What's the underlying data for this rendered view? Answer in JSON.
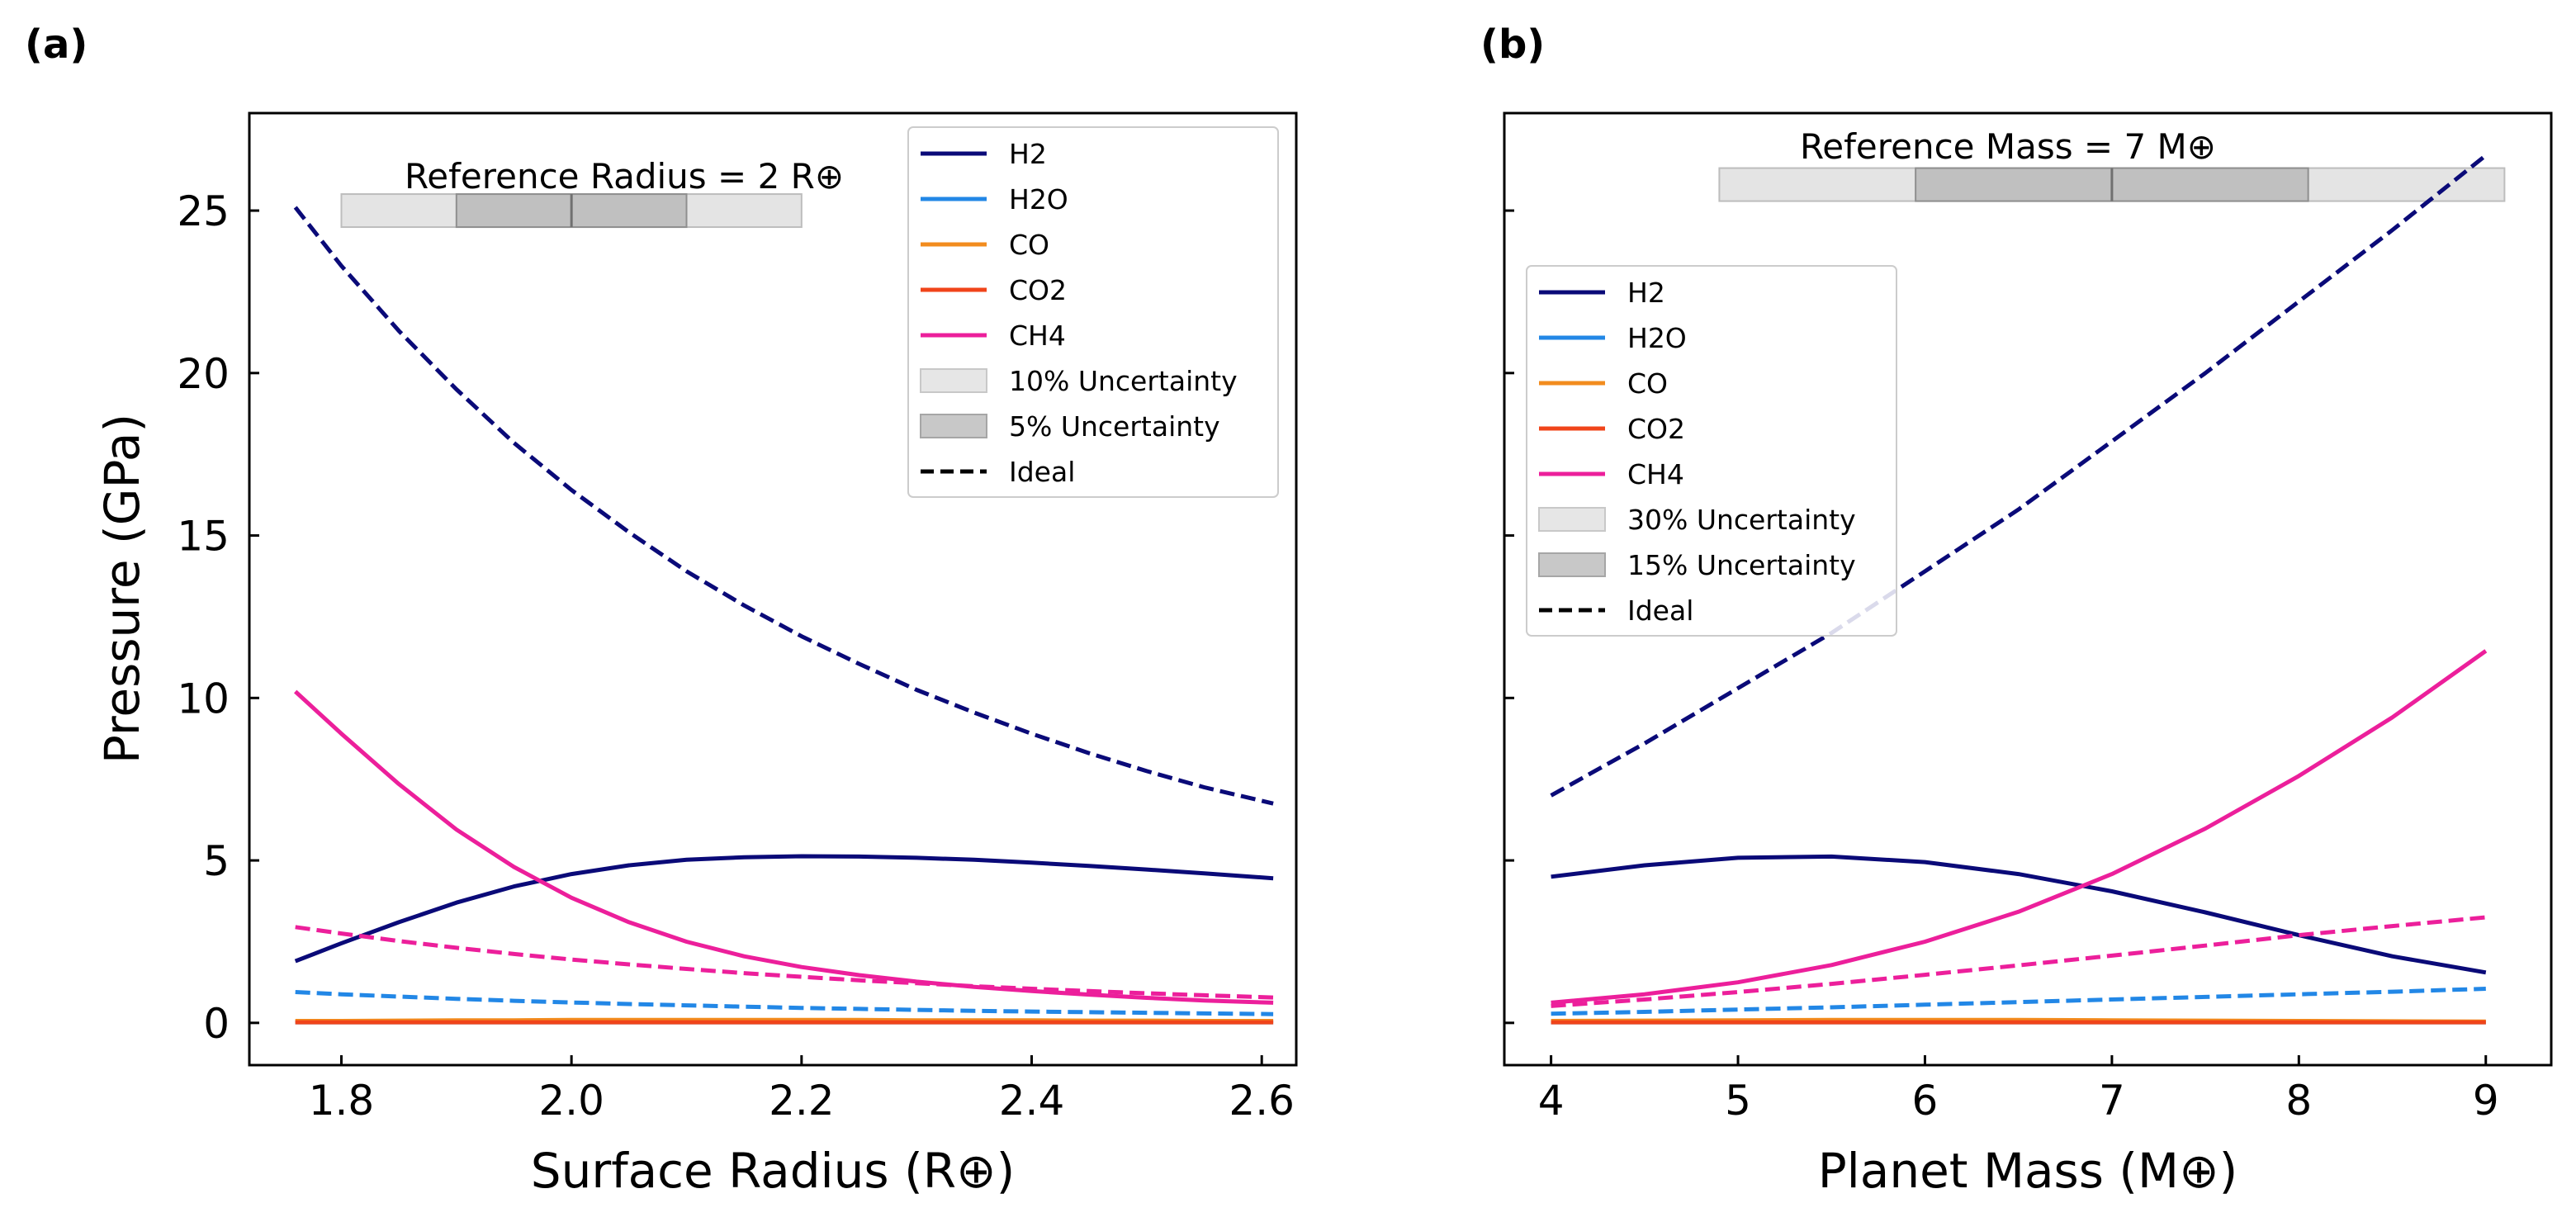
{
  "figure": {
    "ylabel": "Pressure (GPa)",
    "colors": {
      "H2": "#0a0a78",
      "H2O": "#2287e6",
      "CO": "#f28c1e",
      "CO2": "#f0441a",
      "CH4": "#ec1f9b"
    }
  },
  "chart_data": [
    {
      "panel_label": "(a)",
      "type": "line",
      "xlabel": "Surface Radius (R⊕)",
      "ylabel": "Pressure (GPa)",
      "xlim": [
        1.72,
        2.63
      ],
      "ylim": [
        -1.3,
        28
      ],
      "xticks": [
        1.8,
        2.0,
        2.2,
        2.4,
        2.6
      ],
      "xtick_labels": [
        "1.8",
        "2.0",
        "2.2",
        "2.4",
        "2.6"
      ],
      "yticks": [
        0,
        5,
        10,
        15,
        20,
        25
      ],
      "ytick_labels": [
        "0",
        "5",
        "10",
        "15",
        "20",
        "25"
      ],
      "x": [
        1.76,
        1.8,
        1.85,
        1.9,
        1.95,
        2.0,
        2.05,
        2.1,
        2.15,
        2.2,
        2.25,
        2.3,
        2.35,
        2.4,
        2.45,
        2.5,
        2.55,
        2.61
      ],
      "series": [
        {
          "name": "H2",
          "style": "solid",
          "values": [
            1.9,
            2.45,
            3.1,
            3.7,
            4.2,
            4.58,
            4.85,
            5.02,
            5.1,
            5.13,
            5.12,
            5.08,
            5.02,
            4.93,
            4.83,
            4.72,
            4.6,
            4.45
          ]
        },
        {
          "name": "H2O",
          "style": "solid",
          "values": [
            0.02,
            0.02,
            0.02,
            0.02,
            0.02,
            0.02,
            0.02,
            0.02,
            0.02,
            0.02,
            0.02,
            0.02,
            0.02,
            0.02,
            0.02,
            0.02,
            0.02,
            0.02
          ]
        },
        {
          "name": "CO",
          "style": "solid",
          "values": [
            0.06,
            0.06,
            0.07,
            0.08,
            0.08,
            0.09,
            0.09,
            0.09,
            0.09,
            0.09,
            0.09,
            0.08,
            0.08,
            0.08,
            0.07,
            0.07,
            0.06,
            0.06
          ]
        },
        {
          "name": "CO2",
          "style": "solid",
          "values": [
            0.02,
            0.02,
            0.02,
            0.02,
            0.02,
            0.02,
            0.02,
            0.02,
            0.02,
            0.02,
            0.02,
            0.02,
            0.02,
            0.02,
            0.02,
            0.02,
            0.02,
            0.02
          ]
        },
        {
          "name": "CH4",
          "style": "solid",
          "values": [
            10.2,
            8.9,
            7.35,
            5.95,
            4.8,
            3.85,
            3.1,
            2.5,
            2.05,
            1.72,
            1.47,
            1.27,
            1.11,
            0.98,
            0.87,
            0.77,
            0.69,
            0.62
          ]
        },
        {
          "name": "H2",
          "style": "dashed",
          "values": [
            25.1,
            23.3,
            21.3,
            19.5,
            17.85,
            16.4,
            15.1,
            13.9,
            12.85,
            11.9,
            11.05,
            10.25,
            9.55,
            8.9,
            8.3,
            7.75,
            7.25,
            6.75
          ]
        },
        {
          "name": "H2O",
          "style": "dashed",
          "values": [
            0.95,
            0.88,
            0.81,
            0.74,
            0.68,
            0.63,
            0.58,
            0.54,
            0.5,
            0.46,
            0.43,
            0.4,
            0.37,
            0.35,
            0.33,
            0.31,
            0.29,
            0.27
          ]
        },
        {
          "name": "CH4",
          "style": "dashed",
          "values": [
            2.95,
            2.75,
            2.52,
            2.31,
            2.12,
            1.95,
            1.8,
            1.66,
            1.53,
            1.42,
            1.31,
            1.22,
            1.13,
            1.05,
            0.98,
            0.91,
            0.85,
            0.78
          ]
        }
      ],
      "reference": {
        "label": "Reference Radius = 2 R⊕",
        "value": 2.0,
        "y": 25,
        "band_10": [
          1.8,
          2.2
        ],
        "band_5": [
          1.9,
          2.1
        ]
      },
      "legend": {
        "placement": "top-right",
        "entries": [
          {
            "label": "H2",
            "kind": "line",
            "key": "H2"
          },
          {
            "label": "H2O",
            "kind": "line",
            "key": "H2O"
          },
          {
            "label": "CO",
            "kind": "line",
            "key": "CO"
          },
          {
            "label": "CO2",
            "kind": "line",
            "key": "CO2"
          },
          {
            "label": "CH4",
            "kind": "line",
            "key": "CH4"
          },
          {
            "label": "10% Uncertainty",
            "kind": "patch-light"
          },
          {
            "label": "5% Uncertainty",
            "kind": "patch-dark"
          },
          {
            "label": "Ideal",
            "kind": "dashed"
          }
        ]
      }
    },
    {
      "panel_label": "(b)",
      "type": "line",
      "xlabel": "Planet Mass (M⊕)",
      "ylabel": "",
      "xlim": [
        3.75,
        9.35
      ],
      "ylim": [
        -1.3,
        28
      ],
      "xticks": [
        4,
        5,
        6,
        7,
        8,
        9
      ],
      "xtick_labels": [
        "4",
        "5",
        "6",
        "7",
        "8",
        "9"
      ],
      "yticks": [
        0,
        5,
        10,
        15,
        20,
        25
      ],
      "ytick_labels": [],
      "x": [
        4.0,
        4.5,
        5.0,
        5.5,
        6.0,
        6.5,
        7.0,
        7.5,
        8.0,
        8.5,
        9.0
      ],
      "series": [
        {
          "name": "H2",
          "style": "solid",
          "values": [
            4.5,
            4.85,
            5.08,
            5.12,
            4.95,
            4.58,
            4.05,
            3.4,
            2.7,
            2.05,
            1.55
          ]
        },
        {
          "name": "H2O",
          "style": "solid",
          "values": [
            0.02,
            0.02,
            0.02,
            0.02,
            0.02,
            0.02,
            0.02,
            0.02,
            0.02,
            0.02,
            0.02
          ]
        },
        {
          "name": "CO",
          "style": "solid",
          "values": [
            0.06,
            0.07,
            0.08,
            0.09,
            0.09,
            0.09,
            0.08,
            0.07,
            0.06,
            0.05,
            0.04
          ]
        },
        {
          "name": "CO2",
          "style": "solid",
          "values": [
            0.02,
            0.02,
            0.02,
            0.02,
            0.02,
            0.02,
            0.02,
            0.02,
            0.02,
            0.02,
            0.02
          ]
        },
        {
          "name": "CH4",
          "style": "solid",
          "values": [
            0.62,
            0.88,
            1.25,
            1.78,
            2.5,
            3.42,
            4.58,
            5.98,
            7.6,
            9.4,
            11.45
          ]
        },
        {
          "name": "H2",
          "style": "dashed",
          "values": [
            7.0,
            8.6,
            10.3,
            12.0,
            13.9,
            15.8,
            17.9,
            20.0,
            22.2,
            24.4,
            26.7
          ]
        },
        {
          "name": "H2O",
          "style": "dashed",
          "values": [
            0.28,
            0.34,
            0.41,
            0.48,
            0.56,
            0.64,
            0.72,
            0.8,
            0.88,
            0.96,
            1.05
          ]
        },
        {
          "name": "CH4",
          "style": "dashed",
          "values": [
            0.52,
            0.72,
            0.95,
            1.2,
            1.48,
            1.77,
            2.07,
            2.38,
            2.7,
            2.98,
            3.25
          ]
        }
      ],
      "reference": {
        "label": "Reference Mass = 7 M⊕",
        "value": 7.0,
        "y": 25.8,
        "band_30": [
          4.9,
          9.1
        ],
        "band_15": [
          5.95,
          8.05
        ]
      },
      "legend": {
        "placement": "upper-left",
        "entries": [
          {
            "label": "H2",
            "kind": "line",
            "key": "H2"
          },
          {
            "label": "H2O",
            "kind": "line",
            "key": "H2O"
          },
          {
            "label": "CO",
            "kind": "line",
            "key": "CO"
          },
          {
            "label": "CO2",
            "kind": "line",
            "key": "CO2"
          },
          {
            "label": "CH4",
            "kind": "line",
            "key": "CH4"
          },
          {
            "label": "30% Uncertainty",
            "kind": "patch-light"
          },
          {
            "label": "15% Uncertainty",
            "kind": "patch-dark"
          },
          {
            "label": "Ideal",
            "kind": "dashed"
          }
        ]
      }
    }
  ]
}
